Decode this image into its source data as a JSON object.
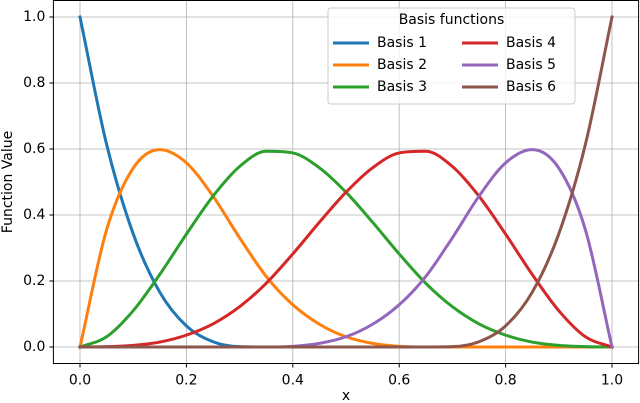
{
  "chart_data": {
    "type": "line",
    "x_label": "x",
    "y_label": "Function Value",
    "x": [
      0,
      0.05,
      0.1,
      0.15,
      0.2,
      0.25,
      0.3,
      0.35,
      0.4,
      0.45,
      0.5,
      0.55,
      0.6,
      0.65,
      0.7,
      0.75,
      0.8,
      0.85,
      0.9,
      0.95,
      1.0
    ],
    "series": [
      {
        "name": "Basis 1",
        "color": "#1f77b4",
        "values": [
          1,
          0.614,
          0.343,
          0.166,
          0.064,
          0.016,
          0.001,
          0,
          0,
          0,
          0,
          0,
          0,
          0,
          0,
          0,
          0,
          0,
          0,
          0,
          0
        ]
      },
      {
        "name": "Basis 2",
        "color": "#ff7f0e",
        "values": [
          0,
          0.355,
          0.542,
          0.598,
          0.558,
          0.457,
          0.331,
          0.214,
          0.128,
          0.069,
          0.031,
          0.011,
          0.002,
          0,
          0,
          0,
          0,
          0,
          0,
          0,
          0
        ]
      },
      {
        "name": "Basis 3",
        "color": "#2ca02c",
        "values": [
          0,
          0.031,
          0.11,
          0.22,
          0.342,
          0.457,
          0.547,
          0.593,
          0.588,
          0.543,
          0.469,
          0.378,
          0.282,
          0.193,
          0.122,
          0.07,
          0.036,
          0.015,
          0.005,
          0.001,
          0
        ]
      },
      {
        "name": "Basis 4",
        "color": "#d62728",
        "values": [
          0,
          0.001,
          0.005,
          0.015,
          0.036,
          0.07,
          0.122,
          0.193,
          0.282,
          0.378,
          0.469,
          0.543,
          0.588,
          0.593,
          0.547,
          0.457,
          0.342,
          0.22,
          0.11,
          0.031,
          0
        ]
      },
      {
        "name": "Basis 5",
        "color": "#9467bd",
        "values": [
          0,
          0,
          0,
          0,
          0,
          0,
          0,
          0,
          0.002,
          0.011,
          0.031,
          0.069,
          0.128,
          0.214,
          0.331,
          0.457,
          0.558,
          0.598,
          0.542,
          0.355,
          0
        ]
      },
      {
        "name": "Basis 6",
        "color": "#8c564b",
        "values": [
          0,
          0,
          0,
          0,
          0,
          0,
          0,
          0,
          0,
          0,
          0,
          0,
          0,
          0,
          0.001,
          0.016,
          0.064,
          0.166,
          0.343,
          0.614,
          1
        ]
      }
    ],
    "xlim": [
      -0.05,
      1.05
    ],
    "ylim": [
      -0.05,
      1.05
    ],
    "xticks": [
      {
        "value": 0,
        "label": "0.0"
      },
      {
        "value": 0.2,
        "label": "0.2"
      },
      {
        "value": 0.4,
        "label": "0.4"
      },
      {
        "value": 0.6,
        "label": "0.6"
      },
      {
        "value": 0.8,
        "label": "0.8"
      },
      {
        "value": 1,
        "label": "1.0"
      }
    ],
    "yticks": [
      {
        "value": 0,
        "label": "0.0"
      },
      {
        "value": 0.2,
        "label": "0.2"
      },
      {
        "value": 0.4,
        "label": "0.4"
      },
      {
        "value": 0.6,
        "label": "0.6"
      },
      {
        "value": 0.8,
        "label": "0.8"
      },
      {
        "value": 1,
        "label": "1.0"
      }
    ],
    "grid": true,
    "legend": {
      "title": "Basis functions",
      "ncol": 2
    }
  }
}
